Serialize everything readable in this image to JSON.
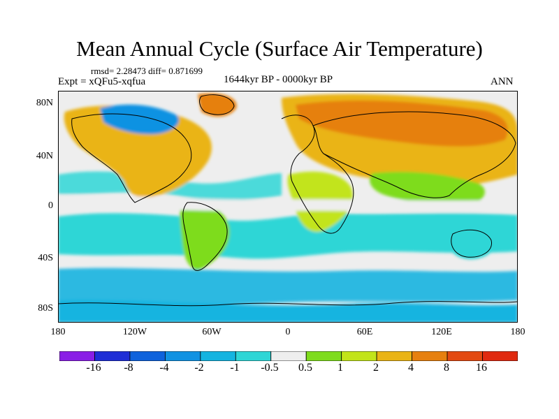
{
  "title": "Mean Annual Cycle (Surface Air Temperature)",
  "stats": "rmsd= 2.28473 diff= 0.871699",
  "experiment": "Expt = xQFu5-xqfua",
  "period": "1644kyr BP - 0000kyr BP",
  "season": "ANN",
  "y_ticks": [
    "80N",
    "40N",
    "0",
    "40S",
    "80S"
  ],
  "x_ticks": [
    "180",
    "120W",
    "60W",
    "0",
    "60E",
    "120E",
    "180"
  ],
  "colorbar": {
    "labels": [
      "-16",
      "-8",
      "-4",
      "-2",
      "-1",
      "-0.5",
      "0.5",
      "1",
      "2",
      "4",
      "8",
      "16"
    ],
    "colors": [
      "#8a1ee6",
      "#1f2ed6",
      "#0e62dc",
      "#1192e2",
      "#14b4e0",
      "#2ed6d6",
      "#eeeeee",
      "#7edc1c",
      "#c2e41a",
      "#eab415",
      "#e6800f",
      "#e34a12",
      "#e02a10"
    ]
  },
  "palette": {
    "ocean_neutral": "#eeeeee",
    "cool_mid": "#2ed6d6",
    "cool": "#14b4e0",
    "cold": "#1192e2",
    "warm_light": "#7edc1c",
    "warm": "#c2e41a",
    "warmer": "#eab415",
    "hot": "#e6800f",
    "hottest": "#e34a12"
  }
}
